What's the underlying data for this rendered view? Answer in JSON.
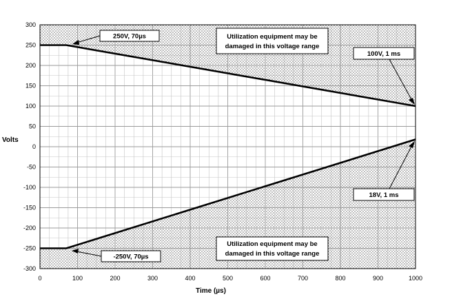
{
  "chart_data": {
    "type": "line",
    "xlabel": "Time (µs)",
    "ylabel": "Volts",
    "xlim": [
      0,
      1000
    ],
    "ylim": [
      -300,
      300
    ],
    "x_ticks": [
      "0",
      "100",
      "200",
      "300",
      "400",
      "500",
      "600",
      "700",
      "800",
      "900",
      "1000"
    ],
    "y_ticks": [
      "300",
      "250",
      "200",
      "150",
      "100",
      "50",
      "0",
      "-50",
      "-100",
      "-150",
      "-200",
      "-250",
      "-300"
    ],
    "grid": true,
    "series": [
      {
        "x": [
          0,
          70,
          1000
        ],
        "y": [
          250,
          250,
          100
        ]
      },
      {
        "x": [
          0,
          70,
          1000
        ],
        "y": [
          -250,
          -250,
          18
        ]
      }
    ],
    "shaded_regions": [
      "above upper limit: Utilization equipment may be damaged in this voltage range",
      "below lower limit: Utilization equipment may be damaged in this voltage range"
    ],
    "annotations": {
      "upper_corner": "250V, 70µs",
      "upper_end": "100V, 1 ms",
      "lower_corner": "-250V, 70µs",
      "lower_end": "18V, 1 ms",
      "upper_region_line1": "Utilization equipment may be",
      "upper_region_line2": "damaged in this voltage range",
      "lower_region_line1": "Utilization equipment may be",
      "lower_region_line2": "damaged in this voltage range"
    }
  }
}
